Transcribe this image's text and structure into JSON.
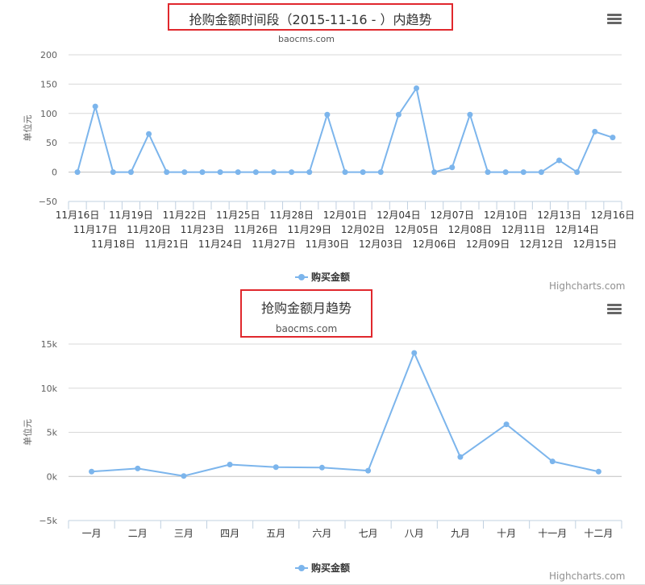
{
  "chart_data": [
    {
      "type": "line",
      "title": "抢购金额时间段（2015-11-16 - ）内趋势",
      "subtitle": "baocms.com",
      "ylabel": "单位元",
      "ylim": [
        -50,
        200
      ],
      "yticks": [
        -50,
        0,
        50,
        100,
        150,
        200
      ],
      "ytick_labels": [
        "−50",
        "0",
        "50",
        "100",
        "150",
        "200"
      ],
      "categories": [
        "11月16日",
        "11月17日",
        "11月18日",
        "11月19日",
        "11月20日",
        "11月21日",
        "11月22日",
        "11月23日",
        "11月24日",
        "11月25日",
        "11月26日",
        "11月27日",
        "11月28日",
        "11月29日",
        "11月30日",
        "12月01日",
        "12月02日",
        "12月03日",
        "12月04日",
        "12月05日",
        "12月06日",
        "12月07日",
        "12月08日",
        "12月09日",
        "12月10日",
        "12月11日",
        "12月12日",
        "12月13日",
        "12月14日",
        "12月15日",
        "12月16日"
      ],
      "series": [
        {
          "name": "购买金额",
          "values": [
            0,
            112,
            0,
            0,
            65,
            0,
            0,
            0,
            0,
            0,
            0,
            0,
            0,
            0,
            98,
            0,
            0,
            0,
            98,
            143,
            0,
            8,
            98,
            0,
            0,
            0,
            0,
            20,
            0,
            69,
            59
          ]
        }
      ],
      "legend": "bottom-center",
      "credits": "Highcharts.com",
      "color": "#7cb5ec"
    },
    {
      "type": "line",
      "title": "抢购金额月趋势",
      "subtitle": "baocms.com",
      "ylabel": "单位元",
      "ylim": [
        -5000,
        15000
      ],
      "yticks": [
        -5000,
        0,
        5000,
        10000,
        15000
      ],
      "ytick_labels": [
        "−5k",
        "0k",
        "5k",
        "10k",
        "15k"
      ],
      "categories": [
        "一月",
        "二月",
        "三月",
        "四月",
        "五月",
        "六月",
        "七月",
        "八月",
        "九月",
        "十月",
        "十一月",
        "十二月"
      ],
      "series": [
        {
          "name": "购买金额",
          "values": [
            550,
            900,
            50,
            1350,
            1050,
            1000,
            650,
            14000,
            2200,
            5900,
            1700,
            550
          ]
        }
      ],
      "legend": "bottom-center",
      "credits": "Highcharts.com",
      "color": "#7cb5ec"
    }
  ]
}
